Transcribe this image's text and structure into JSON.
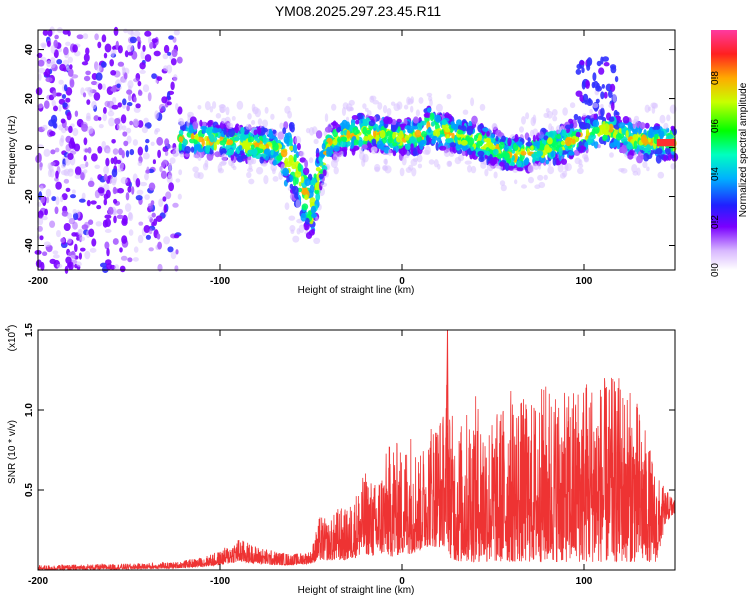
{
  "title": "YM08.2025.297.23.45.R11",
  "chart_data": [
    {
      "type": "heatmap",
      "name": "spectrogram",
      "xlabel": "Height of straight line (km)",
      "ylabel": "Frequency (Hz)",
      "xlim": [
        -200,
        150
      ],
      "ylim": [
        -50,
        48
      ],
      "xticks": [
        {
          "v": -200,
          "label": "-200"
        },
        {
          "v": -100,
          "label": "-100"
        },
        {
          "v": 0,
          "label": "0"
        },
        {
          "v": 100,
          "label": "100"
        }
      ],
      "yticks": [
        {
          "v": -40,
          "label": "-40"
        },
        {
          "v": -20,
          "label": "-20"
        },
        {
          "v": 0,
          "label": "0"
        },
        {
          "v": 20,
          "label": "20"
        },
        {
          "v": 40,
          "label": "40"
        }
      ],
      "ridge": {
        "x": [
          -145,
          -130,
          -110,
          -90,
          -70,
          -60,
          -55,
          -50,
          -45,
          -40,
          -30,
          -20,
          -10,
          0,
          10,
          15,
          20,
          30,
          40,
          50,
          60,
          70,
          80,
          90,
          100,
          110,
          120,
          130,
          140,
          150
        ],
        "freq": [
          5,
          4,
          3,
          2,
          0,
          -5,
          -15,
          -25,
          -10,
          2,
          5,
          6,
          5,
          4,
          5,
          10,
          7,
          5,
          3,
          0,
          -3,
          -2,
          0,
          2,
          5,
          8,
          5,
          3,
          2,
          2
        ]
      },
      "colorbar": {
        "label": "Normalized spectral amplitude",
        "ticks": [
          {
            "v": 0.0,
            "label": "0.0"
          },
          {
            "v": 0.2,
            "label": "0.2"
          },
          {
            "v": 0.4,
            "label": "0.4"
          },
          {
            "v": 0.6,
            "label": "0.6"
          },
          {
            "v": 0.8,
            "label": "0.8"
          }
        ],
        "range": [
          0,
          1
        ]
      }
    },
    {
      "type": "line",
      "name": "snr",
      "xlabel": "Height of straight line (km)",
      "ylabel": "SNR (10 * v/v)",
      "scale_label": "(x10",
      "scale_exp": "4",
      "scale_close": ")",
      "color": "#ee3333",
      "xlim": [
        -200,
        150
      ],
      "ylim": [
        0,
        1.5
      ],
      "xticks": [
        {
          "v": -200,
          "label": "-200"
        },
        {
          "v": -100,
          "label": "-100"
        },
        {
          "v": 0,
          "label": "0"
        },
        {
          "v": 100,
          "label": "100"
        }
      ],
      "yticks": [
        {
          "v": 0.5,
          "label": "0.5"
        },
        {
          "v": 1.0,
          "label": "1.0"
        },
        {
          "v": 1.5,
          "label": "1.5"
        }
      ],
      "envelope": {
        "x": [
          -200,
          -150,
          -125,
          -110,
          -100,
          -90,
          -80,
          -70,
          -60,
          -50,
          -45,
          -40,
          -35,
          -30,
          -25,
          -20,
          -15,
          -10,
          -5,
          0,
          5,
          10,
          15,
          20,
          24,
          25,
          26,
          30,
          40,
          50,
          60,
          70,
          80,
          90,
          100,
          110,
          120,
          130,
          140,
          145,
          150
        ],
        "max": [
          0.03,
          0.04,
          0.05,
          0.08,
          0.12,
          0.2,
          0.15,
          0.12,
          0.1,
          0.12,
          0.35,
          0.3,
          0.4,
          0.38,
          0.5,
          0.62,
          0.55,
          0.7,
          0.85,
          0.75,
          0.9,
          0.72,
          0.95,
          1.0,
          1.0,
          1.5,
          1.05,
          0.88,
          1.1,
          0.95,
          1.15,
          1.05,
          1.2,
          1.1,
          1.25,
          1.2,
          1.22,
          1.05,
          0.6,
          0.5,
          0.45
        ],
        "min": [
          0.0,
          0.005,
          0.01,
          0.02,
          0.03,
          0.05,
          0.04,
          0.03,
          0.03,
          0.04,
          0.06,
          0.06,
          0.06,
          0.06,
          0.08,
          0.1,
          0.08,
          0.1,
          0.08,
          0.1,
          0.1,
          0.12,
          0.15,
          0.14,
          0.15,
          0.2,
          0.08,
          0.05,
          0.05,
          0.05,
          0.05,
          0.05,
          0.05,
          0.05,
          0.05,
          0.05,
          0.05,
          0.05,
          0.05,
          0.3,
          0.35
        ]
      }
    }
  ]
}
